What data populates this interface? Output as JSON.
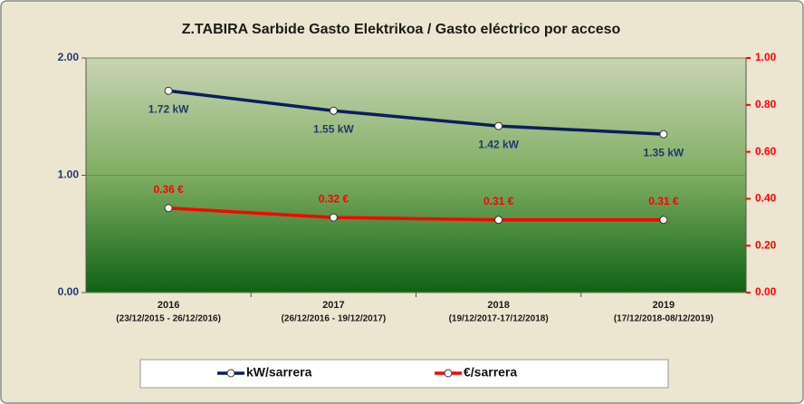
{
  "chart_data": {
    "type": "line",
    "title": "Z.TABIRA Sarbide Gasto Elektrikoa / Gasto eléctrico por acceso",
    "categories": [
      {
        "year": "2016",
        "range": "(23/12/2015 - 26/12/2016)"
      },
      {
        "year": "2017",
        "range": "(26/12/2016 - 19/12/2017)"
      },
      {
        "year": "2018",
        "range": "(19/12/2017-17/12/2018)"
      },
      {
        "year": "2019",
        "range": "(17/12/2018-08/12/2019)"
      }
    ],
    "series": [
      {
        "name": "kW/sarrera",
        "color": "#0a1f5c",
        "values": [
          1.72,
          1.55,
          1.42,
          1.35
        ],
        "value_labels": [
          "1.72 kW",
          "1.55 kW",
          "1.42 kW",
          "1.35 kW"
        ]
      },
      {
        "name": "€/sarrera",
        "color": "#ff0000",
        "axis": "y2",
        "values": [
          0.36,
          0.32,
          0.31,
          0.31
        ],
        "value_labels": [
          "0.36 €",
          "0.32 €",
          "0.31 €",
          "0.31 €"
        ]
      }
    ],
    "ylim": [
      0,
      2
    ],
    "yticks": [
      {
        "value": 0,
        "label": "0.00"
      },
      {
        "value": 1,
        "label": "1.00"
      },
      {
        "value": 2,
        "label": "2.00"
      }
    ],
    "y2lim": [
      0,
      1
    ],
    "y2ticks": [
      {
        "value": 0,
        "label": "0.00"
      },
      {
        "value": 0.2,
        "label": "0.20"
      },
      {
        "value": 0.4,
        "label": "0.40"
      },
      {
        "value": 0.6,
        "label": "0.60"
      },
      {
        "value": 0.8,
        "label": "0.80"
      },
      {
        "value": 1,
        "label": "1.00"
      }
    ],
    "grid": true,
    "legend": "bottom"
  }
}
